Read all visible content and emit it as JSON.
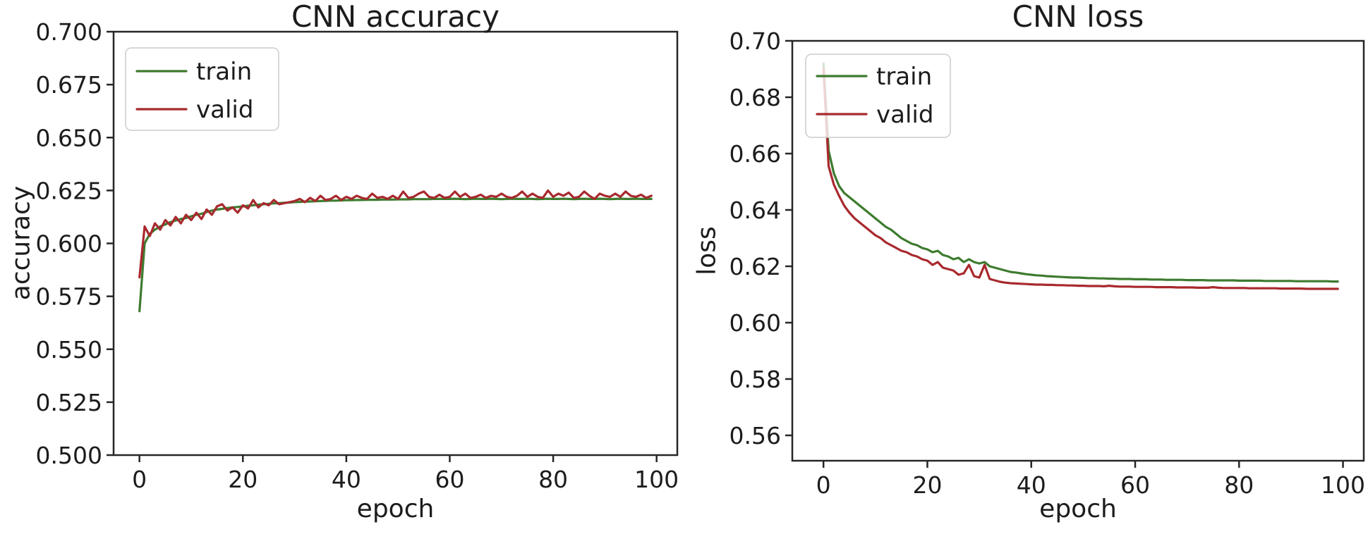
{
  "figure": {
    "background": "#ffffff",
    "text_color": "#1c1c1c",
    "spine_color": "#262626"
  },
  "chart_data": [
    {
      "type": "line",
      "title": "CNN accuracy",
      "xlabel": "epoch",
      "ylabel": "accuracy",
      "xlim": [
        -5,
        104
      ],
      "ylim": [
        0.5,
        0.7
      ],
      "grid": false,
      "xticks": [
        0,
        20,
        40,
        60,
        80,
        100
      ],
      "xtick_labels": [
        "0",
        "20",
        "40",
        "60",
        "80",
        "100"
      ],
      "yticks": [
        0.5,
        0.525,
        0.55,
        0.575,
        0.6,
        0.625,
        0.65,
        0.675,
        0.7
      ],
      "ytick_labels": [
        "0.500",
        "0.525",
        "0.550",
        "0.575",
        "0.600",
        "0.625",
        "0.650",
        "0.675",
        "0.700"
      ],
      "legend": {
        "position": "upper left",
        "entries": [
          "train",
          "valid"
        ]
      },
      "series": [
        {
          "name": "train",
          "color": "#3d7b2f",
          "values": [
            0.568,
            0.6,
            0.6045,
            0.6065,
            0.608,
            0.609,
            0.61,
            0.6108,
            0.6115,
            0.612,
            0.6128,
            0.6135,
            0.614,
            0.6148,
            0.6155,
            0.616,
            0.6163,
            0.6167,
            0.617,
            0.6172,
            0.6175,
            0.6178,
            0.618,
            0.6183,
            0.6185,
            0.6187,
            0.6189,
            0.619,
            0.6192,
            0.6193,
            0.6195,
            0.6196,
            0.6197,
            0.6198,
            0.6199,
            0.62,
            0.6201,
            0.6202,
            0.6202,
            0.6203,
            0.6204,
            0.6204,
            0.6205,
            0.6205,
            0.6206,
            0.6206,
            0.6206,
            0.6207,
            0.6207,
            0.6207,
            0.6208,
            0.6208,
            0.6208,
            0.6209,
            0.6209,
            0.6209,
            0.6209,
            0.621,
            0.621,
            0.621,
            0.621,
            0.6211,
            0.621,
            0.6209,
            0.621,
            0.6211,
            0.621,
            0.621,
            0.6211,
            0.621,
            0.6209,
            0.621,
            0.6211,
            0.621,
            0.621,
            0.6211,
            0.621,
            0.6209,
            0.621,
            0.6211,
            0.621,
            0.621,
            0.6211,
            0.621,
            0.6209,
            0.621,
            0.6211,
            0.621,
            0.621,
            0.6211,
            0.621,
            0.6209,
            0.621,
            0.6211,
            0.621,
            0.621,
            0.6211,
            0.621,
            0.621,
            0.621
          ]
        },
        {
          "name": "valid",
          "color": "#a8292e",
          "values": [
            0.584,
            0.608,
            0.6035,
            0.6095,
            0.6065,
            0.611,
            0.6085,
            0.6125,
            0.6095,
            0.6135,
            0.611,
            0.6145,
            0.6115,
            0.616,
            0.6135,
            0.6175,
            0.6185,
            0.6155,
            0.617,
            0.6145,
            0.618,
            0.6165,
            0.6205,
            0.617,
            0.619,
            0.618,
            0.6205,
            0.6185,
            0.619,
            0.6195,
            0.62,
            0.621,
            0.6195,
            0.6215,
            0.62,
            0.6225,
            0.6205,
            0.621,
            0.6225,
            0.6205,
            0.622,
            0.621,
            0.6225,
            0.6215,
            0.621,
            0.6235,
            0.6215,
            0.622,
            0.621,
            0.6225,
            0.621,
            0.6245,
            0.6215,
            0.622,
            0.6235,
            0.6245,
            0.622,
            0.6215,
            0.623,
            0.6215,
            0.622,
            0.6245,
            0.622,
            0.6235,
            0.6215,
            0.622,
            0.623,
            0.6215,
            0.6225,
            0.622,
            0.6235,
            0.622,
            0.6215,
            0.6225,
            0.6245,
            0.622,
            0.6235,
            0.622,
            0.6215,
            0.625,
            0.622,
            0.6235,
            0.6225,
            0.624,
            0.6215,
            0.622,
            0.6245,
            0.6225,
            0.621,
            0.6235,
            0.6225,
            0.622,
            0.6235,
            0.622,
            0.6245,
            0.6225,
            0.622,
            0.623,
            0.6215,
            0.6225
          ]
        }
      ]
    },
    {
      "type": "line",
      "title": "CNN loss",
      "xlabel": "epoch",
      "ylabel": "loss",
      "xlim": [
        -6,
        104
      ],
      "ylim": [
        0.551,
        0.7
      ],
      "grid": false,
      "xticks": [
        0,
        20,
        40,
        60,
        80,
        100
      ],
      "xtick_labels": [
        "0",
        "20",
        "40",
        "60",
        "80",
        "100"
      ],
      "yticks": [
        0.56,
        0.58,
        0.6,
        0.62,
        0.64,
        0.66,
        0.68,
        0.7
      ],
      "ytick_labels": [
        "0.56",
        "0.58",
        "0.60",
        "0.62",
        "0.64",
        "0.66",
        "0.68",
        "0.70"
      ],
      "legend": {
        "position": "upper left",
        "entries": [
          "train",
          "valid"
        ]
      },
      "series": [
        {
          "name": "train",
          "color": "#3d7b2f",
          "values": [
            0.692,
            0.661,
            0.653,
            0.6485,
            0.646,
            0.6445,
            0.643,
            0.6415,
            0.64,
            0.6385,
            0.637,
            0.6355,
            0.634,
            0.633,
            0.6315,
            0.63,
            0.629,
            0.628,
            0.6275,
            0.6265,
            0.626,
            0.625,
            0.6255,
            0.624,
            0.6235,
            0.6225,
            0.623,
            0.6215,
            0.6225,
            0.6215,
            0.621,
            0.6215,
            0.62,
            0.6195,
            0.619,
            0.6185,
            0.618,
            0.6178,
            0.6175,
            0.6172,
            0.617,
            0.6168,
            0.6167,
            0.6165,
            0.6164,
            0.6163,
            0.6162,
            0.6161,
            0.616,
            0.616,
            0.6159,
            0.6158,
            0.6158,
            0.6157,
            0.6157,
            0.6156,
            0.6156,
            0.6155,
            0.6155,
            0.6155,
            0.6154,
            0.6154,
            0.6154,
            0.6153,
            0.6153,
            0.6153,
            0.6152,
            0.6152,
            0.6152,
            0.6152,
            0.6151,
            0.6151,
            0.6151,
            0.6151,
            0.615,
            0.615,
            0.615,
            0.615,
            0.615,
            0.615,
            0.6149,
            0.6149,
            0.6149,
            0.6149,
            0.6149,
            0.6148,
            0.6148,
            0.6148,
            0.6148,
            0.6148,
            0.6148,
            0.6147,
            0.6147,
            0.6147,
            0.6147,
            0.6147,
            0.6147,
            0.6147,
            0.6146,
            0.6146
          ]
        },
        {
          "name": "valid",
          "color": "#a8292e",
          "values": [
            0.69,
            0.6555,
            0.649,
            0.645,
            0.6415,
            0.639,
            0.637,
            0.6355,
            0.634,
            0.6325,
            0.631,
            0.63,
            0.6285,
            0.6275,
            0.6265,
            0.6255,
            0.625,
            0.624,
            0.6235,
            0.6225,
            0.622,
            0.6205,
            0.6215,
            0.6195,
            0.619,
            0.6185,
            0.617,
            0.6175,
            0.6205,
            0.6165,
            0.616,
            0.6205,
            0.6155,
            0.615,
            0.6145,
            0.6142,
            0.614,
            0.6139,
            0.6138,
            0.6137,
            0.6136,
            0.6135,
            0.6135,
            0.6134,
            0.6134,
            0.6133,
            0.6133,
            0.6132,
            0.6132,
            0.6131,
            0.6131,
            0.613,
            0.613,
            0.613,
            0.6129,
            0.6131,
            0.6129,
            0.6128,
            0.6128,
            0.6128,
            0.6127,
            0.6127,
            0.6127,
            0.6127,
            0.6126,
            0.6126,
            0.6126,
            0.6126,
            0.6125,
            0.6125,
            0.6125,
            0.6125,
            0.6124,
            0.6124,
            0.6124,
            0.6126,
            0.6124,
            0.6123,
            0.6123,
            0.6123,
            0.6123,
            0.6123,
            0.6122,
            0.6122,
            0.6122,
            0.6122,
            0.6122,
            0.6122,
            0.6121,
            0.6121,
            0.6121,
            0.6121,
            0.6121,
            0.612,
            0.612,
            0.612,
            0.612,
            0.612,
            0.612,
            0.612
          ]
        }
      ]
    }
  ]
}
